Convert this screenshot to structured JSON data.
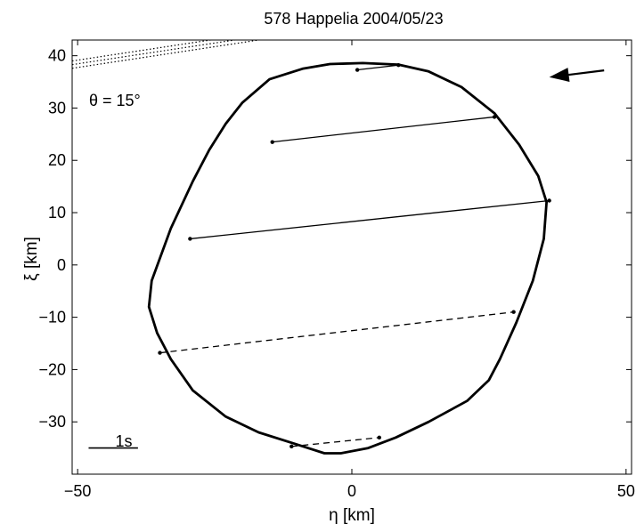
{
  "chart_data": {
    "type": "scatter",
    "title": "578 Happelia   2004/05/23",
    "xlabel": "η [km]",
    "ylabel": "ξ [km]",
    "xlim": [
      -51,
      51
    ],
    "ylim": [
      -40,
      43
    ],
    "xticks": [
      -50,
      0,
      50
    ],
    "xtick_labels": [
      "−50",
      "0",
      "50"
    ],
    "yticks": [
      -30,
      -20,
      -10,
      0,
      10,
      20,
      30,
      40
    ],
    "ytick_labels": [
      "−30",
      "−20",
      "−10",
      "0",
      "10",
      "20",
      "30",
      "40"
    ],
    "grid": false,
    "legend": "none",
    "annotation": "θ = 15°",
    "scale_bar_label": "1s",
    "colors": {
      "line": "#000000",
      "background": "#ffffff"
    },
    "profile_outline": [
      [
        8.5,
        38.3
      ],
      [
        14,
        37
      ],
      [
        20,
        34
      ],
      [
        26,
        29
      ],
      [
        30.5,
        23
      ],
      [
        34,
        17
      ],
      [
        35.5,
        12
      ],
      [
        35,
        5
      ],
      [
        33,
        -3
      ],
      [
        30,
        -11
      ],
      [
        27,
        -18
      ],
      [
        25,
        -22
      ],
      [
        21,
        -26
      ],
      [
        14,
        -30
      ],
      [
        8,
        -33
      ],
      [
        3,
        -35
      ],
      [
        -2,
        -36
      ],
      [
        -5,
        -36
      ],
      [
        -11,
        -34
      ],
      [
        -17,
        -32
      ],
      [
        -23,
        -29
      ],
      [
        -29,
        -24
      ],
      [
        -33,
        -18
      ],
      [
        -35.5,
        -13
      ],
      [
        -37,
        -8
      ],
      [
        -36.5,
        -3
      ],
      [
        -33,
        7
      ],
      [
        -29,
        16
      ],
      [
        -26,
        22
      ],
      [
        -23,
        27
      ],
      [
        -20,
        31
      ],
      [
        -15,
        35.5
      ],
      [
        -9,
        37.5
      ],
      [
        -4,
        38.4
      ],
      [
        2,
        38.6
      ],
      [
        8.5,
        38.3
      ]
    ],
    "chords": [
      {
        "style": "solid",
        "start": [
          1,
          37.3
        ],
        "end": [
          8.5,
          38.2
        ]
      },
      {
        "style": "solid",
        "start": [
          -14.5,
          23.5
        ],
        "end": [
          26,
          28.3
        ]
      },
      {
        "style": "solid",
        "start": [
          -29.5,
          5.0
        ],
        "end": [
          36,
          12.3
        ]
      },
      {
        "style": "dashed",
        "start": [
          -35,
          -16.8
        ],
        "end": [
          29.5,
          -9.0
        ]
      },
      {
        "style": "dashed",
        "start": [
          -11,
          -34.7
        ],
        "end": [
          5,
          -33.0
        ]
      }
    ],
    "off_body_chords": [
      {
        "style": "dotted",
        "start": [
          -51,
          37.6
        ],
        "end": [
          -17,
          43
        ]
      },
      {
        "style": "dotted",
        "start": [
          -51,
          38.3
        ],
        "end": [
          -17,
          43.7
        ]
      },
      {
        "style": "dotted",
        "start": [
          -51,
          39.0
        ],
        "end": [
          -17,
          44.4
        ]
      }
    ],
    "motion_arrow": {
      "from": [
        46,
        37.2
      ],
      "to": [
        36,
        35.9
      ]
    },
    "scale_bar": {
      "from": [
        -48,
        -35
      ],
      "to": [
        -39,
        -35
      ]
    }
  }
}
